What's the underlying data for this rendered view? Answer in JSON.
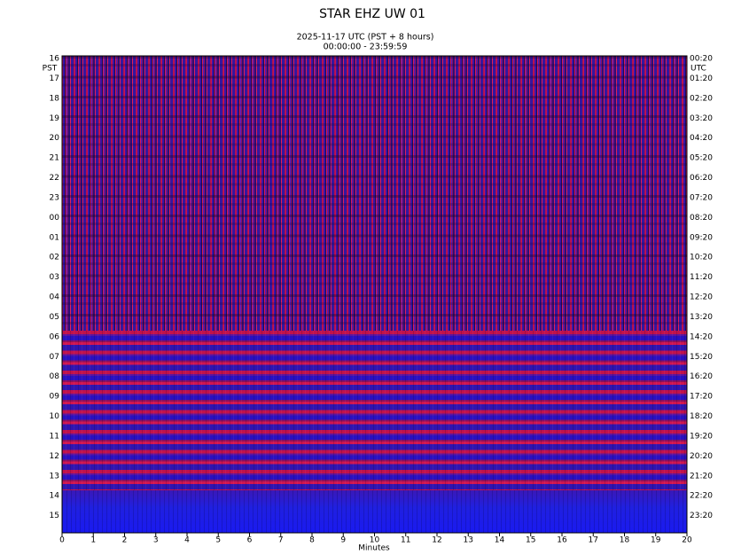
{
  "chart_data": {
    "type": "helicorder",
    "title": "STAR EHZ UW 01",
    "subtitle": [
      "2025-11-17 UTC (PST + 8 hours)",
      "00:00:00 - 23:59:59"
    ],
    "xlabel": "Minutes",
    "left_axis_label": "PST",
    "right_axis_label": "UTC",
    "xlim": [
      0,
      20
    ],
    "xticks": [
      0,
      1,
      2,
      3,
      4,
      5,
      6,
      7,
      8,
      9,
      10,
      11,
      12,
      13,
      14,
      15,
      16,
      17,
      18,
      19,
      20
    ],
    "left_labels": [
      "16",
      "17",
      "18",
      "19",
      "20",
      "21",
      "22",
      "23",
      "00",
      "01",
      "02",
      "03",
      "04",
      "05",
      "06",
      "07",
      "08",
      "09",
      "10",
      "11",
      "12",
      "13",
      "14",
      "15"
    ],
    "right_labels": [
      "00:20",
      "01:20",
      "02:20",
      "03:20",
      "04:20",
      "05:20",
      "06:20",
      "07:20",
      "08:20",
      "09:20",
      "10:20",
      "11:20",
      "12:20",
      "13:20",
      "14:20",
      "15:20",
      "16:20",
      "17:20",
      "18:20",
      "19:20",
      "20:20",
      "21:20",
      "22:20",
      "23:20"
    ]
  }
}
